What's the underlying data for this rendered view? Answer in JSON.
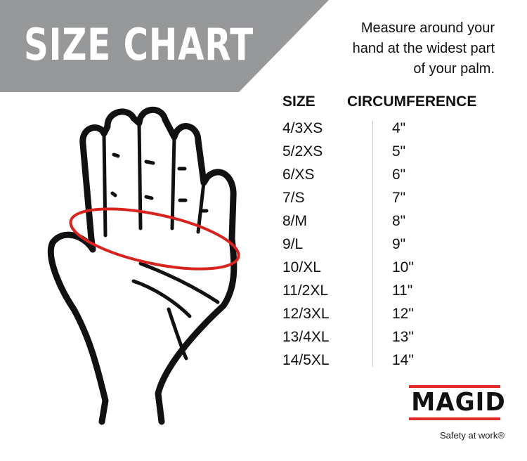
{
  "banner": {
    "title": "SIZE CHART",
    "color": "#97989a"
  },
  "instructions": {
    "lines": [
      "Measure around your",
      "hand at the widest part",
      "of your palm."
    ]
  },
  "table": {
    "headers": {
      "size": "SIZE",
      "circumference": "CIRCUMFERENCE"
    },
    "rows": [
      {
        "size": "4/3XS",
        "circumference": "4\""
      },
      {
        "size": "5/2XS",
        "circumference": "5\""
      },
      {
        "size": "6/XS",
        "circumference": "6\""
      },
      {
        "size": "7/S",
        "circumference": "7\""
      },
      {
        "size": "8/M",
        "circumference": "8\""
      },
      {
        "size": "9/L",
        "circumference": "9\""
      },
      {
        "size": "10/XL",
        "circumference": "10\""
      },
      {
        "size": "11/2XL",
        "circumference": "11\""
      },
      {
        "size": "12/3XL",
        "circumference": "12\""
      },
      {
        "size": "13/4XL",
        "circumference": "13\""
      },
      {
        "size": "14/5XL",
        "circumference": "14\""
      }
    ]
  },
  "logo": {
    "brand": "MAGID",
    "tagline": "Safety at work®",
    "accent": "#e32a2a"
  },
  "illustration": {
    "icon": "hand-measure-icon",
    "measure_color": "#d9231f"
  }
}
